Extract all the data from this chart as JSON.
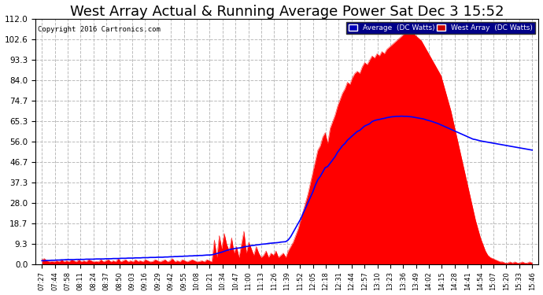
{
  "title": "West Array Actual & Running Average Power Sat Dec 3 15:52",
  "copyright": "Copyright 2016 Cartronics.com",
  "legend_labels": [
    "Average  (DC Watts)",
    "West Array  (DC Watts)"
  ],
  "yticks": [
    0.0,
    9.3,
    18.7,
    28.0,
    37.3,
    46.7,
    56.0,
    65.3,
    74.7,
    84.0,
    93.3,
    102.6,
    112.0
  ],
  "ylim": [
    0.0,
    112.0
  ],
  "background_color": "#ffffff",
  "plot_bg": "#ffffff",
  "grid_color": "#bbbbbb",
  "title_fontsize": 13,
  "xtick_labels": [
    "07:27",
    "07:44",
    "07:58",
    "08:11",
    "08:24",
    "08:37",
    "08:50",
    "09:03",
    "09:16",
    "09:29",
    "09:42",
    "09:55",
    "10:08",
    "10:21",
    "10:34",
    "10:47",
    "11:00",
    "11:13",
    "11:26",
    "11:39",
    "11:52",
    "12:05",
    "12:18",
    "12:31",
    "12:44",
    "12:57",
    "13:10",
    "13:23",
    "13:36",
    "13:49",
    "14:02",
    "14:15",
    "14:28",
    "14:41",
    "14:54",
    "15:07",
    "15:20",
    "15:33",
    "15:46"
  ],
  "west_vals": [
    2.0,
    2.5,
    1.5,
    1.0,
    1.2,
    1.0,
    1.5,
    1.0,
    2.0,
    1.0,
    1.5,
    1.0,
    2.0,
    1.5,
    1.0,
    2.0,
    1.0,
    1.5,
    1.0,
    2.0,
    1.5,
    1.0,
    1.2,
    1.0,
    2.0,
    1.0,
    1.5,
    2.0,
    1.0,
    1.5,
    1.0,
    2.5,
    1.0,
    1.5,
    2.0,
    1.0,
    1.5,
    1.0,
    2.0,
    1.2,
    1.5,
    1.0,
    2.0,
    1.5,
    1.0,
    1.2,
    2.0,
    1.5,
    1.0,
    1.5,
    2.0,
    1.0,
    1.5,
    2.5,
    1.0,
    1.5,
    1.0,
    2.0,
    1.5,
    1.0,
    1.5,
    2.0,
    1.5,
    1.0,
    1.2,
    1.5,
    1.0,
    2.0,
    1.5,
    1.0,
    11.0,
    3.0,
    13.0,
    7.0,
    14.0,
    9.0,
    6.0,
    12.0,
    5.0,
    8.0,
    3.0,
    9.0,
    15.0,
    5.0,
    10.0,
    7.0,
    4.0,
    8.0,
    5.0,
    3.0,
    4.0,
    6.0,
    3.0,
    5.0,
    4.0,
    6.0,
    3.0,
    4.0,
    5.0,
    3.0,
    6.0,
    8.0,
    10.0,
    13.0,
    16.0,
    20.0,
    24.0,
    28.0,
    32.0,
    37.0,
    42.0,
    47.0,
    52.0,
    54.0,
    58.0,
    60.0,
    55.0,
    62.0,
    65.0,
    68.0,
    72.0,
    75.0,
    78.0,
    80.0,
    83.0,
    82.0,
    85.0,
    87.0,
    88.0,
    87.0,
    90.0,
    92.0,
    91.0,
    93.0,
    95.0,
    94.0,
    96.0,
    95.0,
    97.0,
    96.0,
    98.0,
    99.0,
    100.0,
    101.0,
    102.0,
    103.0,
    104.0,
    105.0,
    106.0,
    107.0,
    106.0,
    105.0,
    104.0,
    103.0,
    102.0,
    100.0,
    98.0,
    96.0,
    94.0,
    92.0,
    90.0,
    88.0,
    86.0,
    82.0,
    78.0,
    74.0,
    70.0,
    65.0,
    60.0,
    55.0,
    50.0,
    45.0,
    40.0,
    35.0,
    30.0,
    25.0,
    20.0,
    16.0,
    12.0,
    9.0,
    6.0,
    4.0,
    3.0,
    2.5,
    2.0,
    1.5,
    1.0,
    1.0,
    0.5,
    0.5,
    1.0,
    0.5,
    1.0,
    0.5,
    0.5,
    1.0,
    0.5,
    0.5,
    1.0,
    0.5
  ],
  "avg_vals": [
    1.5,
    1.5,
    1.6,
    1.6,
    1.7,
    1.7,
    1.8,
    1.8,
    1.9,
    1.9,
    2.0,
    2.0,
    2.0,
    2.0,
    2.1,
    2.1,
    2.1,
    2.1,
    2.2,
    2.2,
    2.2,
    2.2,
    2.3,
    2.3,
    2.3,
    2.3,
    2.4,
    2.4,
    2.4,
    2.5,
    2.5,
    2.5,
    2.6,
    2.6,
    2.6,
    2.7,
    2.7,
    2.7,
    2.8,
    2.8,
    2.8,
    2.9,
    2.9,
    2.9,
    3.0,
    3.0,
    3.0,
    3.1,
    3.1,
    3.1,
    3.2,
    3.2,
    3.3,
    3.3,
    3.4,
    3.4,
    3.5,
    3.5,
    3.6,
    3.6,
    3.7,
    3.7,
    3.8,
    3.8,
    3.9,
    3.9,
    4.0,
    4.1,
    4.1,
    4.2,
    4.5,
    4.8,
    5.1,
    5.4,
    5.8,
    6.2,
    6.5,
    6.8,
    7.0,
    7.2,
    7.3,
    7.5,
    7.8,
    8.0,
    8.2,
    8.4,
    8.5,
    8.7,
    8.8,
    9.0,
    9.1,
    9.2,
    9.4,
    9.5,
    9.6,
    9.7,
    9.8,
    10.0,
    10.1,
    10.2,
    11.0,
    12.5,
    14.5,
    16.5,
    18.5,
    20.5,
    23.0,
    25.5,
    28.0,
    30.5,
    33.0,
    36.0,
    38.5,
    40.0,
    42.0,
    44.0,
    44.5,
    46.0,
    47.5,
    49.0,
    51.0,
    52.5,
    54.0,
    55.0,
    56.5,
    57.5,
    58.5,
    59.5,
    60.5,
    61.0,
    62.0,
    63.0,
    63.5,
    64.0,
    65.0,
    65.5,
    65.8,
    66.0,
    66.3,
    66.5,
    66.8,
    67.0,
    67.2,
    67.3,
    67.4,
    67.4,
    67.5,
    67.4,
    67.4,
    67.3,
    67.2,
    67.0,
    66.8,
    66.6,
    66.4,
    66.2,
    65.8,
    65.5,
    65.2,
    64.8,
    64.4,
    64.0,
    63.5,
    63.0,
    62.5,
    62.0,
    61.5,
    61.0,
    60.5,
    60.0,
    59.5,
    59.0,
    58.5,
    58.0,
    57.5,
    57.0,
    56.8,
    56.5,
    56.2,
    56.0,
    55.8,
    55.6,
    55.4,
    55.2,
    55.0,
    54.8,
    54.6,
    54.4,
    54.2,
    54.0,
    53.8,
    53.6,
    53.4,
    53.2,
    53.0,
    52.8,
    52.6,
    52.4,
    52.2,
    52.0
  ]
}
